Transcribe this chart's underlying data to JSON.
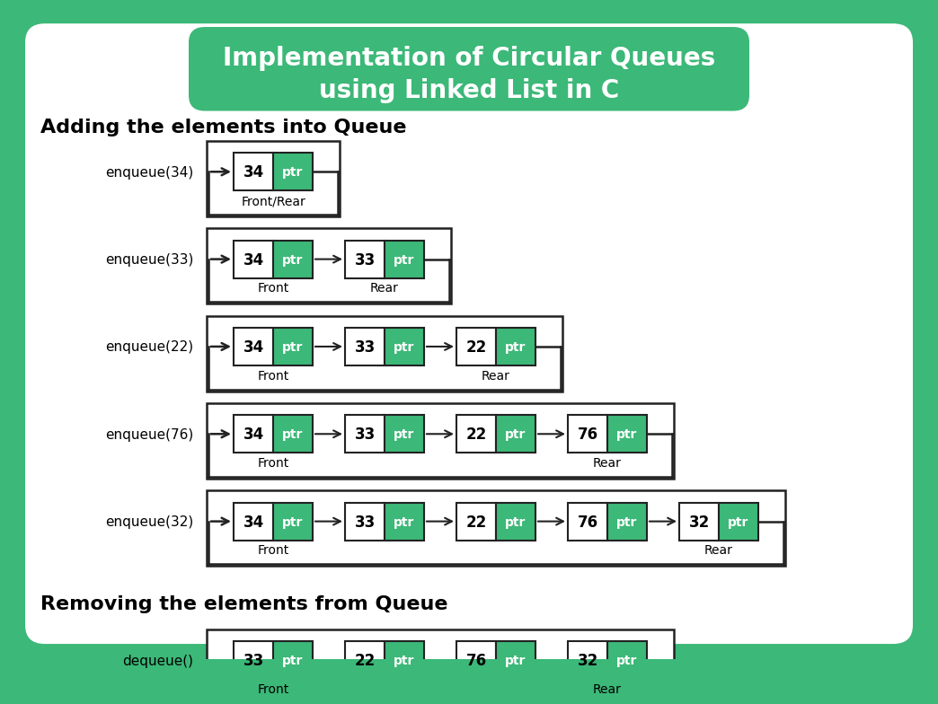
{
  "title_line1": "Implementation of Circular Queues",
  "title_line2": "using Linked List in C",
  "title_bg": "#3cb878",
  "bg_color": "#3cb878",
  "white_bg": "#ffffff",
  "green_color": "#3cb878",
  "border_color": "#222222",
  "section1_title": "Adding the elements into Queue",
  "section2_title": "Removing the elements from Queue",
  "rows": [
    {
      "label": "enqueue(34)",
      "nodes": [
        "34",
        "34"
      ],
      "vals": [
        "34"
      ],
      "front_idx": 0,
      "rear_idx": 0,
      "combined_label": "Front/Rear"
    },
    {
      "label": "enqueue(33)",
      "vals": [
        "34",
        "33"
      ],
      "front_idx": 0,
      "rear_idx": 1
    },
    {
      "label": "enqueue(22)",
      "vals": [
        "34",
        "33",
        "22"
      ],
      "front_idx": 0,
      "rear_idx": 2
    },
    {
      "label": "enqueue(76)",
      "vals": [
        "34",
        "33",
        "22",
        "76"
      ],
      "front_idx": 0,
      "rear_idx": 3
    },
    {
      "label": "enqueue(32)",
      "vals": [
        "34",
        "33",
        "22",
        "76",
        "32"
      ],
      "front_idx": 0,
      "rear_idx": 4
    }
  ],
  "dequeue_row": {
    "label": "dequeue()",
    "vals": [
      "33",
      "22",
      "76",
      "32"
    ],
    "front_idx": 0,
    "rear_idx": 3
  }
}
